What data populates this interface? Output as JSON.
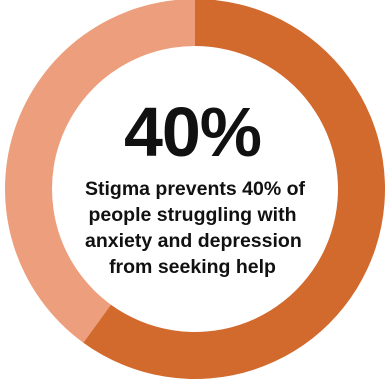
{
  "chart_data": {
    "type": "pie",
    "variant": "donut",
    "values": [
      40,
      60
    ],
    "colors": [
      "#ed9e7c",
      "#d2692d"
    ],
    "start": "top",
    "direction": "counterclockwise",
    "center_value": "40%",
    "caption_lines": [
      "Stigma prevents 40% of",
      "people struggling with",
      "anxiety and depression",
      "from seeking help"
    ]
  }
}
